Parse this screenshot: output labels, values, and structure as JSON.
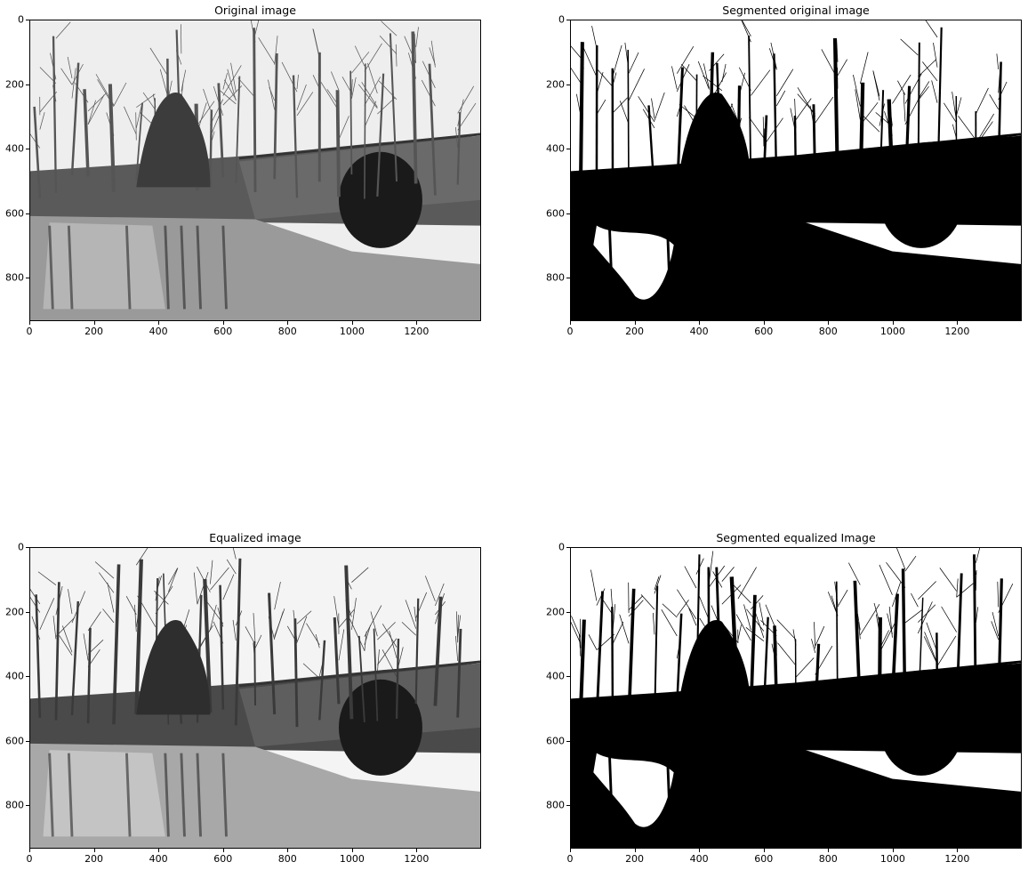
{
  "figure": {
    "panels": [
      {
        "id": "original",
        "title": "Original image",
        "style": "gray",
        "x_ticks": [
          "0",
          "200",
          "400",
          "600",
          "800",
          "1000",
          "1200"
        ],
        "y_ticks": [
          "0",
          "200",
          "400",
          "600",
          "800"
        ]
      },
      {
        "id": "segmented-original",
        "title": "Segmented original image",
        "style": "binary",
        "x_ticks": [
          "0",
          "200",
          "400",
          "600",
          "800",
          "1000",
          "1200"
        ],
        "y_ticks": [
          "0",
          "200",
          "400",
          "600",
          "800"
        ]
      },
      {
        "id": "equalized",
        "title": "Equalized image",
        "style": "gray-eq",
        "x_ticks": [
          "0",
          "200",
          "400",
          "600",
          "800",
          "1000",
          "1200"
        ],
        "y_ticks": [
          "0",
          "200",
          "400",
          "600",
          "800"
        ]
      },
      {
        "id": "segmented-equalized",
        "title": "Segmented equalized Image",
        "style": "binary-eq",
        "x_ticks": [
          "0",
          "200",
          "400",
          "600",
          "800",
          "1000",
          "1200"
        ],
        "y_ticks": [
          "0",
          "200",
          "400",
          "600",
          "800"
        ]
      }
    ],
    "colors": {
      "background": "#ffffff",
      "ink": "#000000",
      "sky": "#eeeeee",
      "water": "#9a9a9a",
      "bank": "#5a5a5a",
      "tunnel": "#1a1a1a"
    }
  }
}
